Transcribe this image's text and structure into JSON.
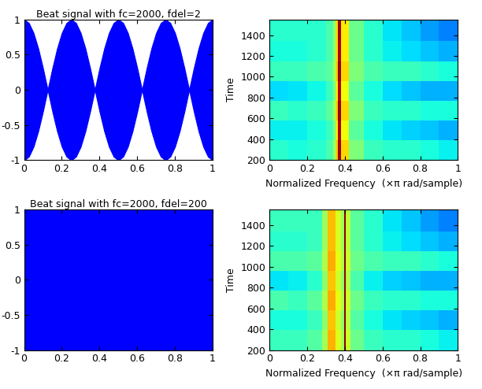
{
  "chart_data": [
    {
      "type": "area",
      "title": "Beat signal with fc=2000, fdel=2",
      "color": "#0000ff",
      "x": [
        0,
        0.025,
        0.05,
        0.075,
        0.1,
        0.125,
        0.15,
        0.175,
        0.2,
        0.225,
        0.25,
        0.275,
        0.3,
        0.325,
        0.35,
        0.375,
        0.4,
        0.425,
        0.45,
        0.475,
        0.5,
        0.525,
        0.55,
        0.575,
        0.6,
        0.625,
        0.65,
        0.675,
        0.7,
        0.725,
        0.75,
        0.775,
        0.8,
        0.825,
        0.85,
        0.875,
        0.9,
        0.925,
        0.95,
        0.975,
        1
      ],
      "upper": [
        1,
        0.951,
        0.809,
        0.588,
        0.309,
        0,
        0.309,
        0.588,
        0.809,
        0.951,
        1,
        0.951,
        0.809,
        0.588,
        0.309,
        0,
        0.309,
        0.588,
        0.809,
        0.951,
        1,
        0.951,
        0.809,
        0.588,
        0.309,
        0,
        0.309,
        0.588,
        0.809,
        0.951,
        1,
        0.951,
        0.809,
        0.588,
        0.309,
        0,
        0.309,
        0.588,
        0.809,
        0.951,
        1
      ],
      "lower": [
        -1,
        -0.951,
        -0.809,
        -0.588,
        -0.309,
        0,
        -0.309,
        -0.588,
        -0.809,
        -0.951,
        -1,
        -0.951,
        -0.809,
        -0.588,
        -0.309,
        0,
        -0.309,
        -0.588,
        -0.809,
        -0.951,
        -1,
        -0.951,
        -0.809,
        -0.588,
        -0.309,
        0,
        -0.309,
        -0.588,
        -0.809,
        -0.951,
        -1,
        -0.951,
        -0.809,
        -0.588,
        -0.309,
        0,
        -0.309,
        -0.588,
        -0.809,
        -0.951,
        -1
      ],
      "xlim": [
        0,
        1
      ],
      "xticks": [
        0,
        0.2,
        0.4,
        0.6,
        0.8,
        1
      ],
      "ylim": [
        -1,
        1
      ],
      "yticks": [
        -1,
        -0.5,
        0,
        0.5,
        1
      ]
    },
    {
      "type": "heatmap",
      "x_label": "Normalized Frequency  (×π rad/sample)",
      "y_label": "Time",
      "x": [
        0,
        0.1,
        0.2,
        0.3,
        0.34,
        0.355,
        0.365,
        0.38,
        0.42,
        0.5,
        0.6,
        0.7,
        0.8,
        0.9,
        1.0
      ],
      "y": [
        200,
        390,
        580,
        770,
        960,
        1150,
        1340,
        1550
      ],
      "cells": [
        [
          0.4,
          0.38,
          0.4,
          0.44,
          0.55,
          0.7,
          0.97,
          0.68,
          0.5,
          0.42,
          0.4,
          0.4,
          0.38,
          0.36
        ],
        [
          0.36,
          0.36,
          0.38,
          0.42,
          0.52,
          0.66,
          0.96,
          0.64,
          0.46,
          0.38,
          0.35,
          0.33,
          0.32,
          0.3
        ],
        [
          0.42,
          0.4,
          0.42,
          0.46,
          0.56,
          0.7,
          0.98,
          0.68,
          0.5,
          0.42,
          0.4,
          0.4,
          0.38,
          0.38
        ],
        [
          0.34,
          0.35,
          0.37,
          0.42,
          0.52,
          0.66,
          0.95,
          0.64,
          0.46,
          0.38,
          0.34,
          0.32,
          0.3,
          0.3
        ],
        [
          0.42,
          0.42,
          0.44,
          0.46,
          0.56,
          0.7,
          0.98,
          0.68,
          0.5,
          0.44,
          0.42,
          0.42,
          0.4,
          0.38
        ],
        [
          0.38,
          0.38,
          0.4,
          0.44,
          0.54,
          0.68,
          0.96,
          0.66,
          0.48,
          0.4,
          0.36,
          0.34,
          0.32,
          0.3
        ],
        [
          0.4,
          0.4,
          0.4,
          0.44,
          0.54,
          0.68,
          0.97,
          0.66,
          0.48,
          0.4,
          0.35,
          0.32,
          0.28,
          0.25
        ]
      ],
      "color_range": [
        0,
        1
      ],
      "xlim": [
        0,
        1
      ],
      "xticks": [
        0,
        0.2,
        0.4,
        0.6,
        0.8,
        1
      ],
      "ylim": [
        200,
        1550
      ],
      "yticks": [
        200,
        400,
        600,
        800,
        1000,
        1200,
        1400
      ]
    },
    {
      "type": "area",
      "title": "Beat signal with fc=2000, fdel=200",
      "color": "#0000ff",
      "x": [
        0,
        0.25,
        0.5,
        0.75,
        1
      ],
      "upper": [
        1,
        1,
        1,
        1,
        1
      ],
      "lower": [
        -1,
        -1,
        -1,
        -1,
        -1
      ],
      "xlim": [
        0,
        1
      ],
      "xticks": [
        0,
        0.2,
        0.4,
        0.6,
        0.8,
        1
      ],
      "ylim": [
        -1,
        1
      ],
      "yticks": [
        -1,
        -0.5,
        0,
        0.5,
        1
      ]
    },
    {
      "type": "heatmap",
      "x_label": "Normalized Frequency  (×π rad/sample)",
      "y_label": "Time",
      "x": [
        0,
        0.1,
        0.2,
        0.28,
        0.31,
        0.35,
        0.38,
        0.395,
        0.405,
        0.43,
        0.5,
        0.6,
        0.7,
        0.8,
        0.9,
        1.0
      ],
      "y": [
        200,
        390,
        580,
        770,
        960,
        1150,
        1340,
        1550
      ],
      "cells": [
        [
          0.42,
          0.42,
          0.45,
          0.55,
          0.72,
          0.62,
          0.55,
          1.0,
          0.6,
          0.48,
          0.42,
          0.4,
          0.4,
          0.38,
          0.36
        ],
        [
          0.38,
          0.38,
          0.42,
          0.52,
          0.7,
          0.6,
          0.52,
          0.99,
          0.58,
          0.45,
          0.38,
          0.35,
          0.33,
          0.32,
          0.3
        ],
        [
          0.44,
          0.42,
          0.46,
          0.56,
          0.73,
          0.63,
          0.56,
          1.0,
          0.6,
          0.48,
          0.42,
          0.4,
          0.4,
          0.38,
          0.38
        ],
        [
          0.35,
          0.36,
          0.4,
          0.52,
          0.7,
          0.6,
          0.52,
          0.98,
          0.57,
          0.44,
          0.36,
          0.33,
          0.32,
          0.3,
          0.3
        ],
        [
          0.44,
          0.44,
          0.46,
          0.56,
          0.73,
          0.63,
          0.56,
          1.0,
          0.6,
          0.48,
          0.44,
          0.42,
          0.42,
          0.4,
          0.38
        ],
        [
          0.4,
          0.4,
          0.42,
          0.54,
          0.71,
          0.61,
          0.54,
          0.99,
          0.58,
          0.46,
          0.4,
          0.36,
          0.34,
          0.32,
          0.3
        ],
        [
          0.42,
          0.42,
          0.42,
          0.54,
          0.71,
          0.61,
          0.54,
          0.99,
          0.58,
          0.46,
          0.4,
          0.35,
          0.32,
          0.28,
          0.25
        ]
      ],
      "color_range": [
        0,
        1
      ],
      "xlim": [
        0,
        1
      ],
      "xticks": [
        0,
        0.2,
        0.4,
        0.6,
        0.8,
        1
      ],
      "ylim": [
        200,
        1550
      ],
      "yticks": [
        200,
        400,
        600,
        800,
        1000,
        1200,
        1400
      ]
    }
  ]
}
